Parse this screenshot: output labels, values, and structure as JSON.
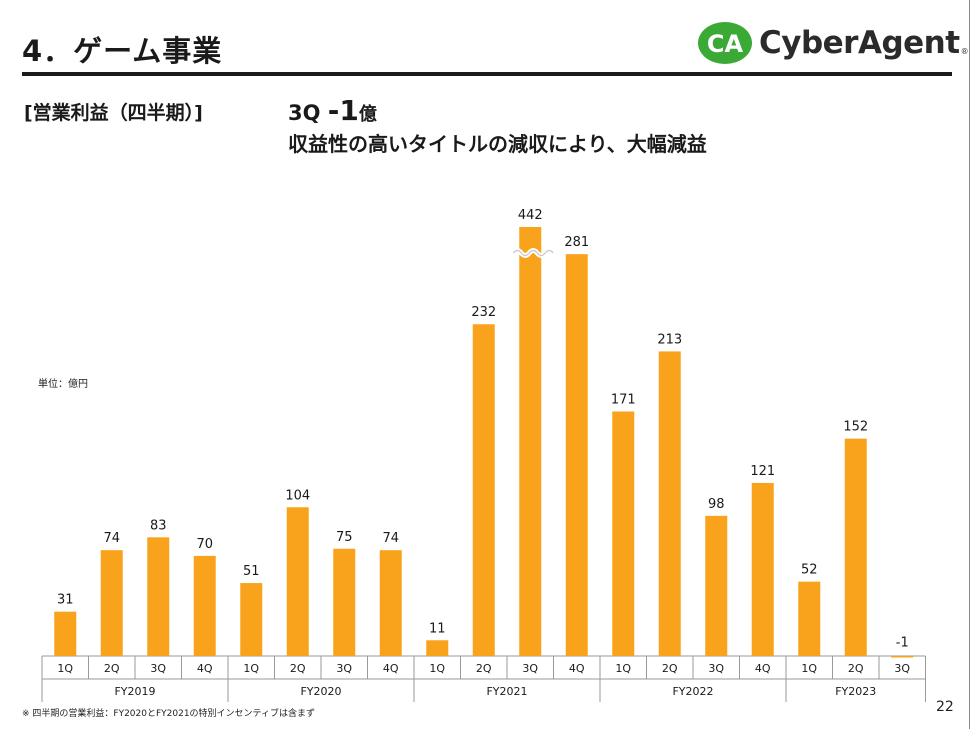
{
  "page": {
    "title": "4．ゲーム事業",
    "logo_text": "CyberAgent",
    "logo_mark": "CA",
    "logo_reg": "®",
    "section_label": "[営業利益（四半期）]",
    "headline_quarter": "3Q",
    "headline_value": "-1",
    "headline_unit": "億",
    "subheadline": "収益性の高いタイトルの減収により、大幅減益",
    "unit_label": "単位：億円",
    "footnote": "※ 四半期の営業利益：FY2020とFY2021の特別インセンティブは含まず",
    "page_number": "22"
  },
  "colors": {
    "bar": "#F8A31B",
    "text": "#1a1a1a",
    "axis": "#9a9a9a",
    "logo_green": "#3aa935"
  },
  "chart_data": {
    "type": "bar",
    "title": "営業利益（四半期）",
    "ylabel": "億円",
    "xlabel": "",
    "ylim": [
      -5,
      300
    ],
    "axis_break": "FY2021 3Q bar is truncated (value 442 exceeds displayed axis range)",
    "groups": [
      {
        "label": "FY2019",
        "categories": [
          "1Q",
          "2Q",
          "3Q",
          "4Q"
        ],
        "values": [
          31,
          74,
          83,
          70
        ]
      },
      {
        "label": "FY2020",
        "categories": [
          "1Q",
          "2Q",
          "3Q",
          "4Q"
        ],
        "values": [
          51,
          104,
          75,
          74
        ]
      },
      {
        "label": "FY2021",
        "categories": [
          "1Q",
          "2Q",
          "3Q",
          "4Q"
        ],
        "values": [
          11,
          232,
          442,
          281
        ]
      },
      {
        "label": "FY2022",
        "categories": [
          "1Q",
          "2Q",
          "3Q",
          "4Q"
        ],
        "values": [
          171,
          213,
          98,
          121
        ]
      },
      {
        "label": "FY2023",
        "categories": [
          "1Q",
          "2Q",
          "3Q"
        ],
        "values": [
          52,
          152,
          -1
        ]
      }
    ]
  }
}
